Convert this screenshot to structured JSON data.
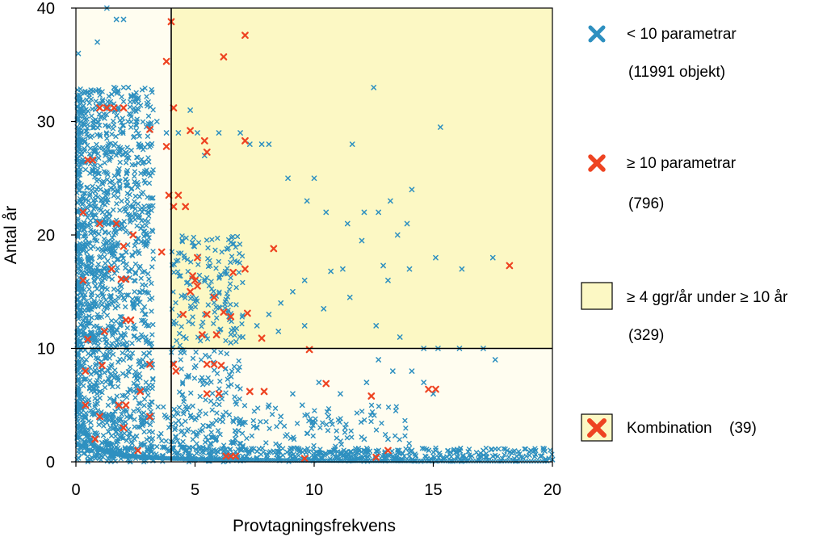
{
  "chart_data": {
    "type": "scatter",
    "title": "",
    "xlabel": "Provtagningsfrekvens",
    "ylabel": "Antal år",
    "xlim": [
      0,
      20
    ],
    "ylim": [
      0,
      40
    ],
    "xticks": [
      0,
      5,
      10,
      15,
      20
    ],
    "yticks": [
      0,
      10,
      20,
      30,
      40
    ],
    "thresholds": {
      "x": 4,
      "y": 10
    },
    "colors": {
      "low": "#2e90c0",
      "high": "#ee4422",
      "region": "#fcf8c4",
      "background": "#fffdf0"
    },
    "series": [
      {
        "name": "< 10 parametrar",
        "count_label": "(11991 objekt)",
        "note": "dense cloud, values approximated",
        "points": [
          [
            1.3,
            40
          ],
          [
            0.1,
            36
          ],
          [
            0.9,
            37
          ],
          [
            1.7,
            39
          ],
          [
            2,
            39
          ],
          [
            1.6,
            33
          ],
          [
            2.2,
            33
          ],
          [
            2.6,
            32
          ],
          [
            3.4,
            30
          ],
          [
            3.8,
            29
          ],
          [
            4.3,
            29
          ],
          [
            4.8,
            31
          ],
          [
            5.1,
            29
          ],
          [
            5.4,
            27
          ],
          [
            6,
            29
          ],
          [
            6.9,
            29
          ],
          [
            7.3,
            28
          ],
          [
            7.8,
            28
          ],
          [
            8.1,
            28
          ],
          [
            8.9,
            25
          ],
          [
            10,
            25
          ],
          [
            12.5,
            33
          ],
          [
            15.3,
            29.5
          ],
          [
            11.6,
            28
          ],
          [
            9.7,
            23
          ],
          [
            14.1,
            24
          ],
          [
            12.1,
            22
          ],
          [
            12.7,
            22
          ],
          [
            13.2,
            23
          ],
          [
            11.4,
            21
          ],
          [
            10.5,
            22
          ],
          [
            13.9,
            21
          ],
          [
            15.1,
            18
          ],
          [
            17.5,
            18
          ],
          [
            13.1,
            16
          ],
          [
            14,
            17
          ],
          [
            16.2,
            17
          ],
          [
            12,
            19.5
          ],
          [
            13.5,
            20
          ],
          [
            12.9,
            17.3
          ],
          [
            11.2,
            17
          ],
          [
            10.7,
            16.8
          ],
          [
            9.6,
            16
          ],
          [
            9.1,
            15
          ],
          [
            8.6,
            14
          ],
          [
            8.1,
            13
          ],
          [
            7.6,
            12
          ],
          [
            7,
            11
          ],
          [
            6.5,
            10.5
          ],
          [
            8.5,
            11.5
          ],
          [
            9.6,
            12
          ],
          [
            10.4,
            13.5
          ],
          [
            11.5,
            14.5
          ],
          [
            12.6,
            12
          ],
          [
            13.6,
            11
          ],
          [
            14.6,
            10
          ],
          [
            15.2,
            10
          ],
          [
            16.1,
            10
          ],
          [
            17.1,
            10
          ],
          [
            17.6,
            9
          ],
          [
            12.7,
            9
          ],
          [
            13.3,
            8
          ],
          [
            14.1,
            8
          ],
          [
            14.6,
            7
          ],
          [
            15,
            6
          ],
          [
            12.2,
            7
          ],
          [
            11.1,
            6
          ],
          [
            10.2,
            7
          ],
          [
            9.5,
            5
          ],
          [
            8.6,
            4
          ],
          [
            7.6,
            3
          ],
          [
            8.1,
            5
          ],
          [
            9.1,
            6
          ],
          [
            10.6,
            4
          ],
          [
            11.3,
            3
          ],
          [
            12.1,
            2
          ],
          [
            13.1,
            2
          ],
          [
            14.1,
            1
          ],
          [
            15.1,
            1
          ],
          [
            16.1,
            1
          ],
          [
            17.1,
            1
          ],
          [
            18.1,
            1
          ],
          [
            19.1,
            1
          ],
          [
            19.5,
            0.5
          ],
          [
            20,
            0.2
          ],
          [
            18.5,
            0.5
          ],
          [
            17.5,
            0.5
          ],
          [
            16,
            0.5
          ],
          [
            15,
            0.5
          ],
          [
            14,
            0.5
          ],
          [
            13,
            0.5
          ],
          [
            12,
            0.5
          ],
          [
            11,
            0.5
          ],
          [
            10,
            0.5
          ],
          [
            9,
            0.5
          ],
          [
            8,
            0.5
          ],
          [
            7,
            0.5
          ]
        ]
      },
      {
        "name": "≥ 10 parametrar",
        "count_label": "(796)",
        "points": [
          [
            4,
            38.8
          ],
          [
            7.1,
            37.6
          ],
          [
            6.2,
            35.7
          ],
          [
            3.8,
            35.3
          ],
          [
            4.1,
            31.2
          ],
          [
            1,
            31.2
          ],
          [
            1.3,
            31.2
          ],
          [
            1.6,
            31.2
          ],
          [
            2,
            31.2
          ],
          [
            3.1,
            29.3
          ],
          [
            4.8,
            29.2
          ],
          [
            3.8,
            27.8
          ],
          [
            5.4,
            28.3
          ],
          [
            7.1,
            28.3
          ],
          [
            5.5,
            27.3
          ],
          [
            0.5,
            26.6
          ],
          [
            0.7,
            26.6
          ],
          [
            3.9,
            23.5
          ],
          [
            4.3,
            23.5
          ],
          [
            4.1,
            22.5
          ],
          [
            4.6,
            22.5
          ],
          [
            0.3,
            22
          ],
          [
            1,
            21
          ],
          [
            1.7,
            21
          ],
          [
            2,
            19
          ],
          [
            2.4,
            20
          ],
          [
            3.6,
            18.5
          ],
          [
            5.1,
            18
          ],
          [
            8.3,
            18.8
          ],
          [
            6.6,
            16.7
          ],
          [
            4.9,
            16.4
          ],
          [
            5,
            16
          ],
          [
            5.1,
            15.5
          ],
          [
            4.8,
            15
          ],
          [
            7.1,
            17
          ],
          [
            1.9,
            16.1
          ],
          [
            2.1,
            16.1
          ],
          [
            1.5,
            17
          ],
          [
            0.3,
            16
          ],
          [
            5.8,
            14.5
          ],
          [
            6.2,
            13.2
          ],
          [
            6.5,
            12.8
          ],
          [
            7.2,
            13.1
          ],
          [
            4.5,
            13
          ],
          [
            5.5,
            13
          ],
          [
            5.3,
            11.2
          ],
          [
            5.9,
            11.2
          ],
          [
            7.8,
            10.9
          ],
          [
            0.5,
            10.8
          ],
          [
            1.2,
            11.5
          ],
          [
            2.1,
            12.5
          ],
          [
            2.3,
            12.5
          ],
          [
            9.8,
            9.9
          ],
          [
            4.1,
            8.6
          ],
          [
            4.2,
            8
          ],
          [
            5.5,
            8.6
          ],
          [
            5.8,
            8.6
          ],
          [
            6.1,
            8.5
          ],
          [
            3.1,
            8.6
          ],
          [
            0.4,
            8
          ],
          [
            1.1,
            8.5
          ],
          [
            10.5,
            6.9
          ],
          [
            12.4,
            5.8
          ],
          [
            14.8,
            6.4
          ],
          [
            15.1,
            6.4
          ],
          [
            5.5,
            6
          ],
          [
            6,
            6
          ],
          [
            7.3,
            6.2
          ],
          [
            7.9,
            6.2
          ],
          [
            2.7,
            6.2
          ],
          [
            0.4,
            5
          ],
          [
            1.8,
            5
          ],
          [
            2.1,
            5
          ],
          [
            1,
            4
          ],
          [
            2,
            3
          ],
          [
            3.1,
            4
          ],
          [
            0.8,
            2
          ],
          [
            2.6,
            1
          ],
          [
            6.3,
            0.5
          ],
          [
            6.5,
            0.5
          ],
          [
            6.7,
            0.5
          ],
          [
            9.6,
            0.3
          ],
          [
            12.6,
            0.4
          ],
          [
            13.1,
            1
          ],
          [
            18.2,
            17.3
          ]
        ]
      }
    ],
    "regions": [
      {
        "name": "≥ 4 ggr/år under ≥ 10 år",
        "count_label": "(329)",
        "x_min": 4,
        "y_min": 10
      }
    ],
    "combination": {
      "name": "Kombination",
      "count_label": "(39)"
    },
    "legend_position": "right"
  }
}
